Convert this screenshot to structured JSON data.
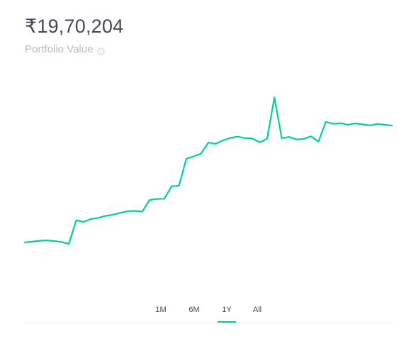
{
  "portfolio": {
    "value": "₹19,70,204",
    "label": "Portfolio Value",
    "info_icon": "info-icon"
  },
  "colors": {
    "line": "#00d09c",
    "text": "#44475b",
    "muted": "#b8b9c2"
  },
  "range_tabs": [
    {
      "label": "1M",
      "active": false
    },
    {
      "label": "6M",
      "active": false
    },
    {
      "label": "1Y",
      "active": true
    },
    {
      "label": "All",
      "active": false
    }
  ],
  "chart_data": {
    "type": "line",
    "title": "",
    "xlabel": "",
    "ylabel": "",
    "grid": false,
    "x": [
      0,
      2,
      4,
      6,
      8,
      10,
      12,
      14,
      16,
      18,
      20,
      22,
      24,
      26,
      28,
      30,
      32,
      34,
      36,
      38,
      40,
      42,
      44,
      46,
      48,
      50,
      52,
      54,
      56,
      58,
      60,
      62,
      64,
      66,
      68,
      70,
      72,
      74,
      76,
      78,
      80,
      82,
      84,
      86,
      88,
      90,
      92,
      94,
      96,
      98,
      100
    ],
    "series": [
      {
        "values": [
          4.8,
          5.0,
          5.3,
          5.4,
          5.2,
          4.9,
          4.3,
          11.8,
          11.3,
          12.2,
          12.6,
          13.2,
          13.6,
          14.2,
          14.7,
          14.8,
          14.6,
          18.3,
          18.6,
          18.7,
          22.6,
          22.9,
          31.4,
          32.2,
          33.1,
          36.6,
          36.2,
          37.3,
          38.1,
          38.5,
          38.0,
          37.9,
          36.7,
          37.8,
          51.0,
          38.0,
          38.4,
          37.6,
          37.8,
          38.6,
          36.9,
          43.2,
          42.6,
          42.8,
          42.3,
          42.7,
          42.4,
          42.1,
          42.5,
          42.3,
          42.0
        ]
      }
    ]
  }
}
